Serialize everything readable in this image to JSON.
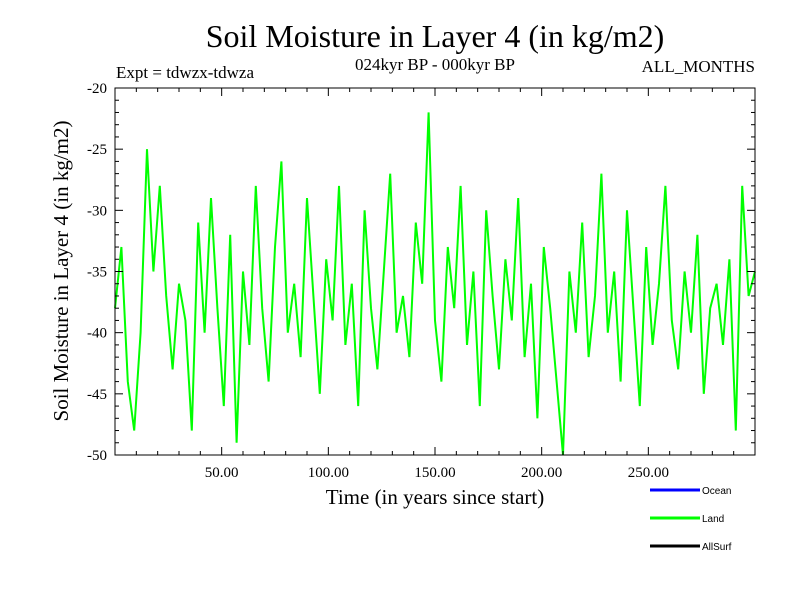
{
  "chart_data": {
    "type": "line",
    "title": "Soil Moisture in Layer 4 (in kg/m2)",
    "subtitle_left": "Expt = tdwzx-tdwza",
    "subtitle_center": "024kyr BP - 000kyr BP",
    "subtitle_right": "ALL_MONTHS",
    "xlabel": "Time (in years since start)",
    "ylabel": "Soil Moisture in Layer 4 (in kg/m2)",
    "xlim": [
      0,
      300
    ],
    "ylim": [
      -50,
      -20
    ],
    "xticks": [
      50,
      100,
      150,
      200,
      250
    ],
    "xtick_labels": [
      "50.00",
      "100.00",
      "150.00",
      "200.00",
      "250.00"
    ],
    "yticks": [
      -20,
      -25,
      -30,
      -35,
      -40,
      -45,
      -50
    ],
    "ytick_labels": [
      "-20",
      "-25",
      "-30",
      "-35",
      "-40",
      "-45",
      "-50"
    ],
    "legend_position": "bottom-right",
    "series": [
      {
        "name": "Ocean",
        "color": "#0000ff",
        "values": []
      },
      {
        "name": "Land",
        "color": "#00ff00",
        "x": [
          0,
          3,
          6,
          9,
          12,
          15,
          18,
          21,
          24,
          27,
          30,
          33,
          36,
          39,
          42,
          45,
          48,
          51,
          54,
          57,
          60,
          63,
          66,
          69,
          72,
          75,
          78,
          81,
          84,
          87,
          90,
          93,
          96,
          99,
          102,
          105,
          108,
          111,
          114,
          117,
          120,
          123,
          126,
          129,
          132,
          135,
          138,
          141,
          144,
          147,
          150,
          153,
          156,
          159,
          162,
          165,
          168,
          171,
          174,
          177,
          180,
          183,
          186,
          189,
          192,
          195,
          198,
          201,
          204,
          207,
          210,
          213,
          216,
          219,
          222,
          225,
          228,
          231,
          234,
          237,
          240,
          243,
          246,
          249,
          252,
          255,
          258,
          261,
          264,
          267,
          270,
          273,
          276,
          279,
          282,
          285,
          288,
          291,
          294,
          297,
          300
        ],
        "values": [
          -38,
          -33,
          -44,
          -48,
          -40,
          -25,
          -35,
          -28,
          -37,
          -43,
          -36,
          -39,
          -48,
          -31,
          -40,
          -29,
          -38,
          -46,
          -32,
          -49,
          -35,
          -41,
          -28,
          -38,
          -44,
          -33,
          -26,
          -40,
          -36,
          -42,
          -29,
          -37,
          -45,
          -34,
          -39,
          -28,
          -41,
          -36,
          -46,
          -30,
          -38,
          -43,
          -35,
          -27,
          -40,
          -37,
          -42,
          -31,
          -36,
          -22,
          -39,
          -44,
          -33,
          -38,
          -28,
          -41,
          -35,
          -46,
          -30,
          -37,
          -43,
          -34,
          -39,
          -29,
          -42,
          -36,
          -47,
          -33,
          -38,
          -44,
          -50,
          -35,
          -40,
          -31,
          -42,
          -37,
          -27,
          -40,
          -35,
          -44,
          -30,
          -38,
          -46,
          -33,
          -41,
          -36,
          -28,
          -39,
          -43,
          -35,
          -40,
          -32,
          -45,
          -38,
          -36,
          -41,
          -34,
          -48,
          -28,
          -37,
          -35
        ]
      },
      {
        "name": "AllSurf",
        "color": "#000000",
        "values": []
      }
    ]
  }
}
